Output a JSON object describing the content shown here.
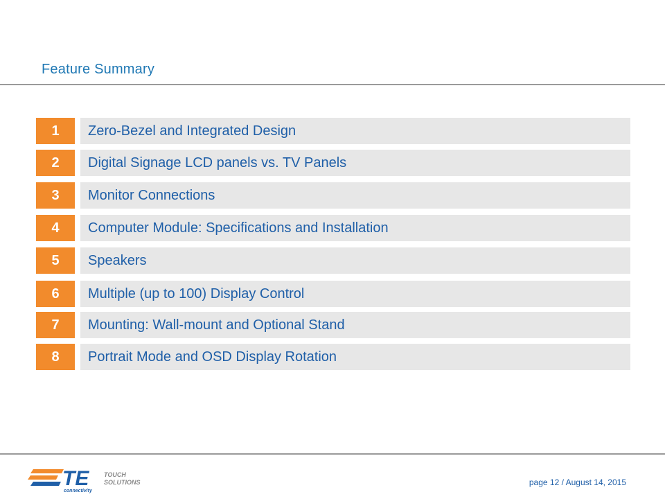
{
  "slide": {
    "title": "Feature Summary",
    "items": [
      {
        "number": "1",
        "label": "Zero-Bezel and Integrated Design"
      },
      {
        "number": "2",
        "label": "Digital Signage LCD panels vs. TV Panels"
      },
      {
        "number": "3",
        "label": "Monitor Connections"
      },
      {
        "number": "4",
        "label": "Computer Module: Specifications and Installation"
      },
      {
        "number": "5",
        "label": "Speakers"
      },
      {
        "number": "6",
        "label": "Multiple (up to 100) Display Control"
      },
      {
        "number": "7",
        "label": "Mounting: Wall-mount and Optional Stand"
      },
      {
        "number": "8",
        "label": "Portrait Mode and OSD Display Rotation"
      }
    ]
  },
  "footer": {
    "logo": {
      "brand": "TE",
      "tagline": "connectivity",
      "product_line_1": "TOUCH",
      "product_line_2": "SOLUTIONS"
    },
    "page_text": "page 12 /",
    "date_text": "August 14, 2015"
  },
  "colors": {
    "title_blue": "#1f78b4",
    "label_blue": "#1f5fa8",
    "number_orange": "#f28b2c",
    "bar_gray": "#e7e7e7",
    "rule_gray": "#9a9a9a"
  }
}
